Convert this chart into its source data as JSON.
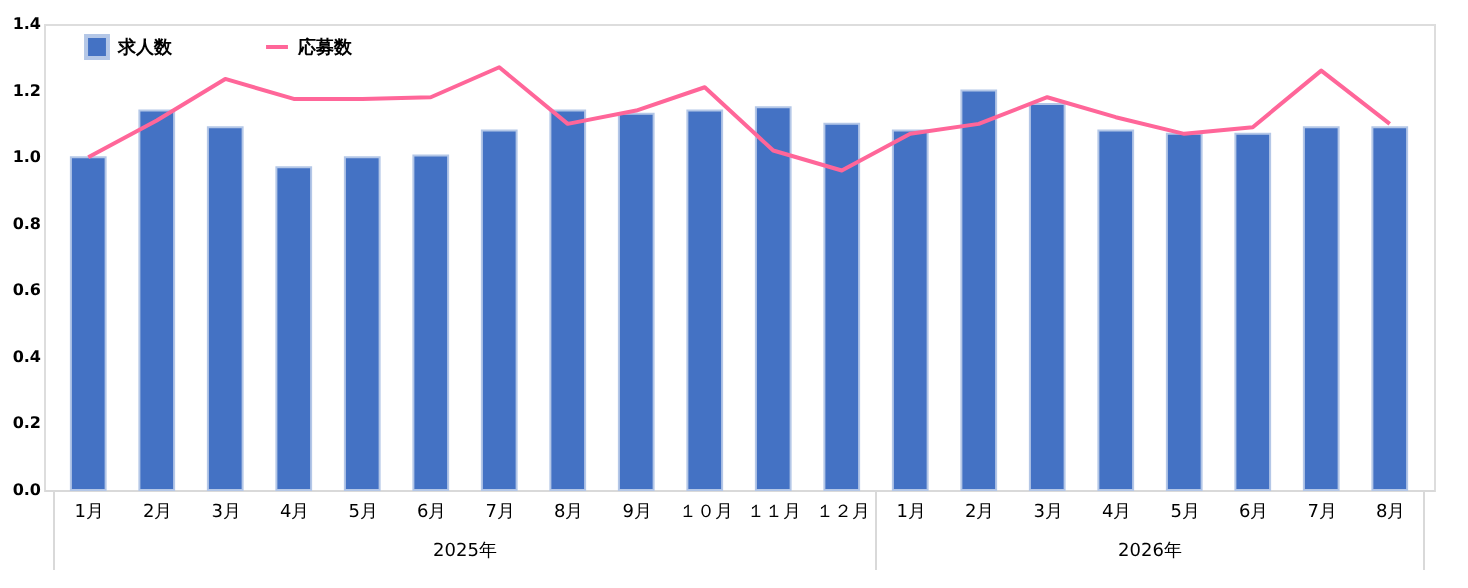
{
  "chart_data": {
    "type": "bar",
    "categories": [
      "1月",
      "2月",
      "3月",
      "4月",
      "5月",
      "6月",
      "7月",
      "8月",
      "9月",
      "１０月",
      "１１月",
      "１２月",
      "1月",
      "2月",
      "3月",
      "4月",
      "5月",
      "6月",
      "7月",
      "8月"
    ],
    "series": [
      {
        "name": "求人数",
        "type": "bar",
        "color": "#4472c4",
        "values": [
          1.0,
          1.14,
          1.09,
          0.97,
          1.0,
          1.005,
          1.08,
          1.14,
          1.13,
          1.14,
          1.15,
          1.1,
          1.08,
          1.2,
          1.16,
          1.08,
          1.07,
          1.07,
          1.09,
          1.09
        ]
      },
      {
        "name": "応募数",
        "type": "line",
        "color": "#ff6699",
        "values": [
          1.0,
          1.11,
          1.235,
          1.175,
          1.175,
          1.18,
          1.27,
          1.1,
          1.14,
          1.21,
          1.02,
          0.96,
          1.07,
          1.1,
          1.18,
          1.12,
          1.07,
          1.09,
          1.26,
          1.1
        ]
      }
    ],
    "annotations": [
      "2025年",
      "2026年"
    ],
    "ylim": [
      0,
      1.4
    ],
    "yticks": [
      {
        "value": 0,
        "label": "0.0"
      },
      0.2,
      0.4,
      0.6,
      0.8,
      {
        "value": 1,
        "label": "1.0"
      },
      1.2,
      1.4
    ],
    "grid": false,
    "legend": "top left"
  }
}
